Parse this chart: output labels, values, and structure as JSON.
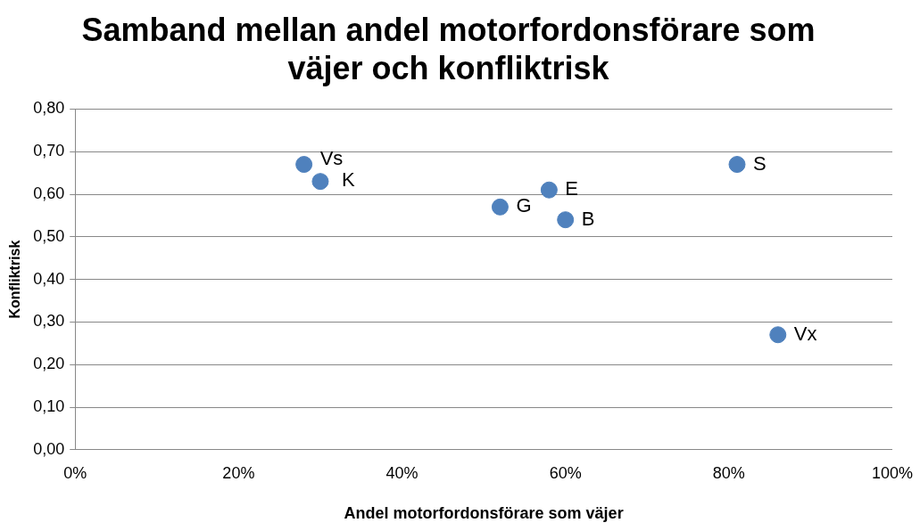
{
  "chart_data": {
    "type": "scatter",
    "title": [
      "Samband mellan andel motorfordonsförare som",
      "väjer och konfliktrisk"
    ],
    "xlabel": "Andel motorfordonsförare som väjer",
    "ylabel": "Konfliktrisk",
    "x": [
      28,
      30,
      52,
      58,
      60,
      81,
      86
    ],
    "series": [
      {
        "color": "#4f81bd",
        "values": [
          0.67,
          0.63,
          0.57,
          0.61,
          0.54,
          0.67,
          0.27
        ]
      }
    ],
    "annotations": [
      {
        "text": "Vs",
        "x": 28,
        "y": 0.67
      },
      {
        "text": "K",
        "x": 30,
        "y": 0.63
      },
      {
        "text": "G",
        "x": 52,
        "y": 0.57
      },
      {
        "text": "E",
        "x": 58,
        "y": 0.61
      },
      {
        "text": "B",
        "x": 60,
        "y": 0.54
      },
      {
        "text": "S",
        "x": 81,
        "y": 0.67
      },
      {
        "text": "Vx",
        "x": 86,
        "y": 0.27
      }
    ],
    "xlim": [
      0,
      100
    ],
    "xticks": [
      {
        "value": 0,
        "label": "0%"
      },
      {
        "value": 20,
        "label": "20%"
      },
      {
        "value": 40,
        "label": "40%"
      },
      {
        "value": 60,
        "label": "60%"
      },
      {
        "value": 80,
        "label": "80%"
      },
      {
        "value": 100,
        "label": "100%"
      }
    ],
    "ylim": [
      0,
      0.8
    ],
    "yticks": [
      {
        "value": 0,
        "label": "0,00"
      },
      {
        "value": 0.1,
        "label": "0,10"
      },
      {
        "value": 0.2,
        "label": "0,20"
      },
      {
        "value": 0.3,
        "label": "0,30"
      },
      {
        "value": 0.4,
        "label": "0,40"
      },
      {
        "value": 0.5,
        "label": "0,50"
      },
      {
        "value": 0.6,
        "label": "0,60"
      },
      {
        "value": 0.7,
        "label": "0,70"
      },
      {
        "value": 0.8,
        "label": "0,80"
      }
    ],
    "grid": "y",
    "marker": "circle",
    "legend": false
  }
}
